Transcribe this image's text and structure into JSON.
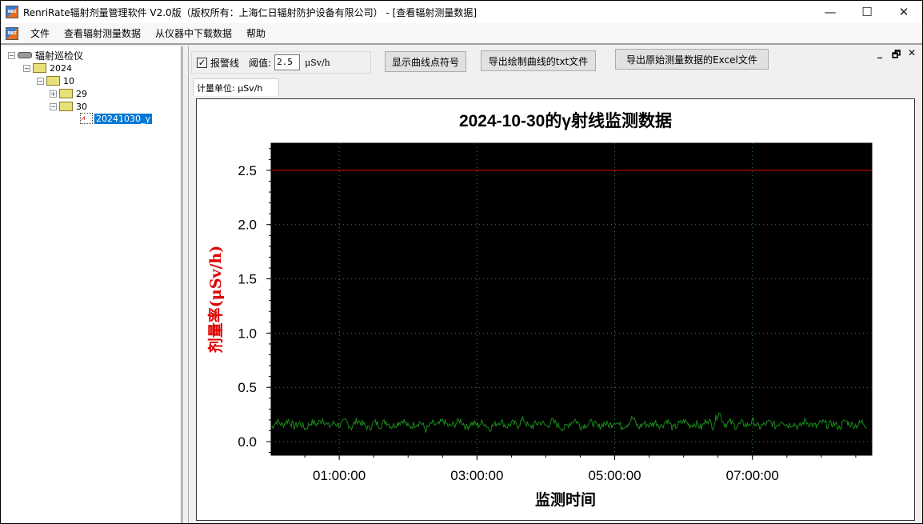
{
  "window": {
    "title": "RenriRate辐射剂量管理软件 V2.0版（版权所有：上海仁日辐射防护设备有限公司） - [查看辐射测量数据]",
    "icon_text": "RNRI",
    "controls": [
      "minimize-icon",
      "maximize-icon",
      "close-icon"
    ]
  },
  "menu": {
    "items": [
      "文件",
      "查看辐射测量数据",
      "从仪器中下载数据",
      "帮助"
    ],
    "mdi_controls": [
      "minimize-icon",
      "restore-icon",
      "close-icon"
    ]
  },
  "tree": {
    "root": "辐射巡检仪",
    "year": "2024",
    "month": "10",
    "days": [
      "29",
      "30"
    ],
    "file": "20241030_γ"
  },
  "toolbar": {
    "alarm_line_label": "报警线",
    "alarm_line_checked": true,
    "threshold_label": "阈值:",
    "threshold_value": "2.5",
    "threshold_unit": "μSv/h",
    "show_symbols": "显示曲线点符号",
    "export_txt": "导出绘制曲线的txt文件",
    "export_excel": "导出原始测量数据的Excel文件"
  },
  "tab": {
    "label": "计量单位: μSv/h"
  },
  "chart_data": {
    "type": "line",
    "title": "2024-10-30的γ射线监测数据",
    "xlabel": "监测时间",
    "ylabel": "剂量率(μSv/h)",
    "ylim": [
      -0.125,
      2.75
    ],
    "yticks": [
      "0.0",
      "0.5",
      "1.0",
      "1.5",
      "2.0",
      "2.5"
    ],
    "xlim": [
      "00:00:40",
      "08:44:00"
    ],
    "xticks": [
      "01:00:00",
      "03:00:00",
      "05:00:00",
      "07:00:00"
    ],
    "grid": true,
    "background": "#000000",
    "line_color": "#1a8a1a",
    "threshold": {
      "value": 2.5,
      "color": "#e00000"
    },
    "x_start": "00:00:40",
    "x_step_minutes": 5,
    "values": [
      0.13,
      0.19,
      0.15,
      0.2,
      0.14,
      0.17,
      0.12,
      0.18,
      0.16,
      0.21,
      0.14,
      0.17,
      0.15,
      0.19,
      0.13,
      0.2,
      0.16,
      0.12,
      0.18,
      0.15,
      0.19,
      0.14,
      0.17,
      0.2,
      0.13,
      0.16,
      0.18,
      0.11,
      0.17,
      0.15,
      0.19,
      0.14,
      0.16,
      0.2,
      0.13,
      0.17,
      0.15,
      0.18,
      0.12,
      0.16,
      0.19,
      0.14,
      0.17,
      0.15,
      0.21,
      0.13,
      0.16,
      0.18,
      0.14,
      0.19,
      0.15,
      0.12,
      0.17,
      0.2,
      0.14,
      0.16,
      0.18,
      0.13,
      0.17,
      0.15,
      0.19,
      0.14,
      0.16,
      0.22,
      0.13,
      0.17,
      0.15,
      0.18,
      0.14,
      0.2,
      0.12,
      0.16,
      0.19,
      0.15,
      0.17,
      0.13,
      0.21,
      0.14,
      0.28,
      0.16,
      0.18,
      0.14,
      0.17,
      0.15,
      0.19,
      0.13,
      0.16,
      0.18,
      0.14,
      0.2,
      0.15,
      0.17,
      0.13,
      0.19,
      0.16,
      0.14,
      0.18,
      0.15,
      0.17,
      0.13,
      0.19,
      0.16,
      0.15,
      0.18,
      0.14
    ]
  }
}
